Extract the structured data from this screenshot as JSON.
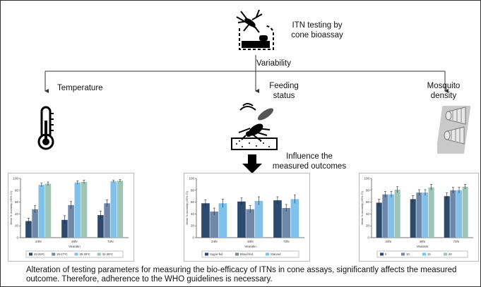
{
  "title": {
    "line1": "ITN testing by",
    "line2": "cone bioassay"
  },
  "variability": "Variability",
  "branches": {
    "temperature": "Temperature",
    "feeding_line1": "Feeding",
    "feeding_line2": "status",
    "density_line1": "Mosquito",
    "density_line2": "density"
  },
  "influence": {
    "line1": "Influence the",
    "line2": "measured outcomes"
  },
  "footer": "Alteration of testing parameters for measuring the bio-efficacy of ITNs in cone assays, significantly affects the measured outcome. Therefore, adherence to the WHO guidelines is necessary.",
  "chart_data": [
    {
      "type": "bar",
      "categories": [
        "24hr",
        "48hr",
        "72hr"
      ],
      "xlabel": "Vearatin",
      "ylabel": "Mean % mortality (95% CI)",
      "ylim": [
        0,
        100
      ],
      "yticks": [
        0,
        20,
        40,
        60,
        80,
        100
      ],
      "series": [
        {
          "name": "22-25ºC",
          "color": "#2c4a6e",
          "values": [
            28,
            30,
            38
          ]
        },
        {
          "name": "26-27ºC",
          "color": "#6f88aa",
          "values": [
            48,
            55,
            58
          ]
        },
        {
          "name": "28-30ºC",
          "color": "#7fc1ea",
          "values": [
            89,
            93,
            95
          ]
        },
        {
          "name": "32-35ºC",
          "color": "#9ec4b6",
          "values": [
            91,
            94,
            96
          ]
        }
      ],
      "errors": [
        [
          5,
          7,
          7
        ],
        [
          6,
          6,
          6
        ],
        [
          3,
          3,
          2
        ],
        [
          3,
          3,
          2
        ]
      ]
    },
    {
      "type": "bar",
      "categories": [
        "24hr",
        "48hr",
        "72hr"
      ],
      "xlabel": "Vearatin",
      "ylabel": "Mean % mortality (95% CI)",
      "ylim": [
        0,
        100
      ],
      "yticks": [
        0,
        20,
        40,
        60,
        80,
        100
      ],
      "series": [
        {
          "name": "Sugar-fed",
          "color": "#2c4a6e",
          "values": [
            58,
            61,
            63
          ]
        },
        {
          "name": "Blood-fed",
          "color": "#6f88aa",
          "values": [
            44,
            48,
            50
          ]
        },
        {
          "name": "Starved",
          "color": "#7fc1ea",
          "values": [
            58,
            62,
            65
          ]
        }
      ],
      "errors": [
        [
          6,
          6,
          6
        ],
        [
          6,
          6,
          6
        ],
        [
          7,
          7,
          7
        ]
      ]
    },
    {
      "type": "bar",
      "categories": [
        "24hr",
        "48hr",
        "72hr"
      ],
      "xlabel": "Vearatin",
      "ylabel": "Mean % mortality (95% CI)",
      "ylim": [
        0,
        100
      ],
      "yticks": [
        0,
        20,
        40,
        60,
        80,
        100
      ],
      "series": [
        {
          "name": "5",
          "color": "#2c4a6e",
          "values": [
            59,
            65,
            70
          ]
        },
        {
          "name": "10",
          "color": "#6f88aa",
          "values": [
            73,
            76,
            80
          ]
        },
        {
          "name": "15",
          "color": "#7fc1ea",
          "values": [
            73,
            76,
            80
          ]
        },
        {
          "name": "20",
          "color": "#9ec4b6",
          "values": [
            81,
            85,
            86
          ]
        }
      ],
      "errors": [
        [
          6,
          6,
          6
        ],
        [
          5,
          5,
          5
        ],
        [
          5,
          5,
          5
        ],
        [
          5,
          5,
          4
        ]
      ]
    }
  ]
}
